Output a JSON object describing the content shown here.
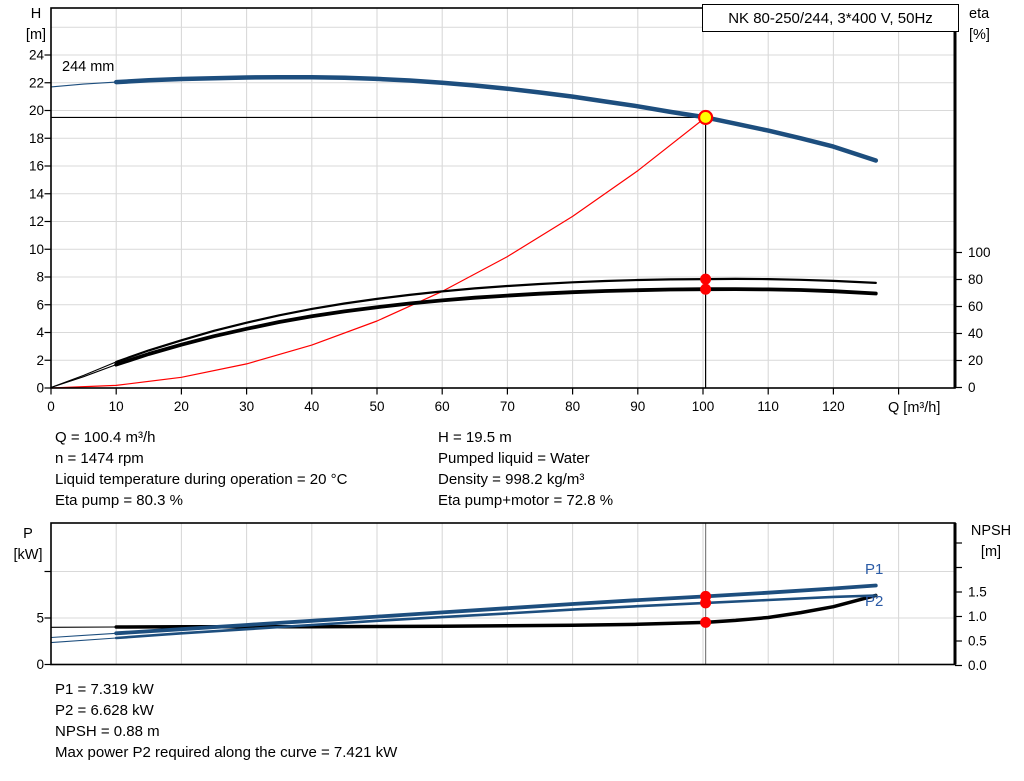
{
  "colors": {
    "curve_blue": "#1d4e7e",
    "label_blue": "#2a5aa5",
    "black": "#000000",
    "red": "#ff0000",
    "yellow": "#ffff00",
    "grid": "#d9d9d9",
    "marker_line_gray": "#808080"
  },
  "axis_labels": {
    "h_title": "H",
    "h_unit": "[m]",
    "eta_title": "eta",
    "eta_unit": "[%]",
    "q_label": "Q [m³/h]",
    "p_title": "P",
    "p_unit": "[kW]",
    "npsh_title": "NPSH",
    "npsh_unit": "[m]"
  },
  "info_block": {
    "left": [
      "Q = 100.4 m³/h",
      "n = 1474 rpm",
      "Liquid temperature during operation = 20 °C",
      "Eta pump = 80.3 %"
    ],
    "right": [
      "H = 19.5 m",
      "Pumped liquid = Water",
      "Density = 998.2 kg/m³",
      "Eta pump+motor = 72.8 %"
    ]
  },
  "results_block": [
    "P1 = 7.319 kW",
    "P2 = 6.628 kW",
    "NPSH = 0.88 m",
    "Max power P2 required along the curve = 7.421 kW"
  ],
  "chart_data": [
    {
      "id": "qh_eta_chart",
      "type": "line",
      "title": "NK 80-250/244, 3*400 V, 50Hz",
      "x_axis": {
        "label": "Q [m³/h]",
        "min": 0,
        "max": 138.7,
        "ticks": [
          [
            0,
            "0"
          ],
          [
            10,
            "10"
          ],
          [
            20,
            "20"
          ],
          [
            30,
            "30"
          ],
          [
            40,
            "40"
          ],
          [
            50,
            "50"
          ],
          [
            60,
            "60"
          ],
          [
            70,
            "70"
          ],
          [
            80,
            "80"
          ],
          [
            90,
            "90"
          ],
          [
            100,
            "100"
          ],
          [
            110,
            "110"
          ],
          [
            120,
            "120"
          ],
          [
            130,
            null
          ]
        ],
        "grid": [
          10,
          20,
          30,
          40,
          50,
          60,
          70,
          80,
          90,
          100,
          110,
          120,
          130
        ]
      },
      "y_left": {
        "label": "H [m]",
        "min": 0,
        "max": 27.4,
        "ticks": [
          [
            0,
            "0"
          ],
          [
            2,
            "2"
          ],
          [
            4,
            "4"
          ],
          [
            6,
            "6"
          ],
          [
            8,
            "8"
          ],
          [
            10,
            "10"
          ],
          [
            12,
            "12"
          ],
          [
            14,
            "14"
          ],
          [
            16,
            "16"
          ],
          [
            18,
            "18"
          ],
          [
            20,
            "20"
          ],
          [
            22,
            "22"
          ],
          [
            24,
            "24"
          ]
        ],
        "grid": [
          2,
          4,
          6,
          8,
          10,
          12,
          14,
          16,
          18,
          20,
          22,
          24,
          26
        ]
      },
      "y_right": {
        "label": "eta [%]",
        "min": 0,
        "max": 104,
        "ticks": [
          [
            0,
            "0"
          ],
          [
            20,
            "20"
          ],
          [
            40,
            "40"
          ],
          [
            60,
            "60"
          ],
          [
            80,
            "80"
          ],
          [
            100,
            "100"
          ]
        ]
      },
      "series": [
        {
          "name": "system-curve",
          "axis": "H",
          "color_key": "red",
          "width": 1.2,
          "points": [
            [
              0,
              0
            ],
            [
              10,
              0.19
            ],
            [
              20,
              0.77
            ],
            [
              30,
              1.74
            ],
            [
              40,
              3.09
            ],
            [
              50,
              4.83
            ],
            [
              60,
              6.96
            ],
            [
              70,
              9.47
            ],
            [
              80,
              12.37
            ],
            [
              90,
              15.66
            ],
            [
              100.4,
              19.5
            ]
          ]
        },
        {
          "name": "eta-pump-motor",
          "axis": "eta",
          "color_key": "black",
          "width": 3.8,
          "thin_until": 10,
          "points": [
            [
              0,
              0
            ],
            [
              5,
              8
            ],
            [
              10,
              17
            ],
            [
              15,
              24.8
            ],
            [
              20,
              31.7
            ],
            [
              25,
              38
            ],
            [
              30,
              43.5
            ],
            [
              35,
              48.5
            ],
            [
              40,
              52.8
            ],
            [
              45,
              56.4
            ],
            [
              50,
              59.5
            ],
            [
              55,
              62.2
            ],
            [
              60,
              64.5
            ],
            [
              65,
              66.5
            ],
            [
              70,
              68.1
            ],
            [
              75,
              69.5
            ],
            [
              80,
              70.6
            ],
            [
              85,
              71.5
            ],
            [
              90,
              72.1
            ],
            [
              95,
              72.6
            ],
            [
              100.4,
              72.8
            ],
            [
              105,
              72.9
            ],
            [
              110,
              72.7
            ],
            [
              115,
              72.2
            ],
            [
              120,
              71.3
            ],
            [
              126.5,
              69.6
            ]
          ]
        },
        {
          "name": "eta-pump",
          "axis": "eta",
          "color_key": "black",
          "width": 2.2,
          "thin_until": 10,
          "points": [
            [
              0,
              0
            ],
            [
              5,
              9
            ],
            [
              10,
              19
            ],
            [
              15,
              27.5
            ],
            [
              20,
              35
            ],
            [
              25,
              42
            ],
            [
              30,
              48
            ],
            [
              35,
              53.5
            ],
            [
              40,
              58.2
            ],
            [
              45,
              62.2
            ],
            [
              50,
              65.6
            ],
            [
              55,
              68.6
            ],
            [
              60,
              71.2
            ],
            [
              65,
              73.4
            ],
            [
              70,
              75.2
            ],
            [
              75,
              76.7
            ],
            [
              80,
              77.9
            ],
            [
              85,
              78.9
            ],
            [
              90,
              79.6
            ],
            [
              95,
              80.1
            ],
            [
              100.4,
              80.3
            ],
            [
              105,
              80.45
            ],
            [
              110,
              80.3
            ],
            [
              115,
              79.8
            ],
            [
              120,
              79
            ],
            [
              126.5,
              77.5
            ]
          ]
        },
        {
          "name": "head-curve",
          "label": "244 mm",
          "axis": "H",
          "color_key": "curve_blue",
          "width": 4.5,
          "thin_until": 10,
          "points": [
            [
              0,
              21.7
            ],
            [
              5,
              21.9
            ],
            [
              10,
              22.05
            ],
            [
              15,
              22.18
            ],
            [
              20,
              22.27
            ],
            [
              25,
              22.33
            ],
            [
              30,
              22.38
            ],
            [
              35,
              22.4
            ],
            [
              40,
              22.4
            ],
            [
              45,
              22.36
            ],
            [
              50,
              22.28
            ],
            [
              55,
              22.16
            ],
            [
              60,
              22
            ],
            [
              65,
              21.8
            ],
            [
              70,
              21.57
            ],
            [
              75,
              21.3
            ],
            [
              80,
              21
            ],
            [
              85,
              20.65
            ],
            [
              90,
              20.3
            ],
            [
              95,
              19.9
            ],
            [
              100.4,
              19.5
            ],
            [
              105,
              19.05
            ],
            [
              110,
              18.55
            ],
            [
              115,
              18
            ],
            [
              120,
              17.4
            ],
            [
              126.5,
              16.4
            ]
          ]
        }
      ],
      "duty_point": {
        "q": 100.4,
        "h": 19.5
      },
      "dots": [
        {
          "name": "eta-pump-dot",
          "q": 100.4,
          "axis": "eta",
          "v": 80.3
        },
        {
          "name": "eta-pump-motor-dot",
          "q": 100.4,
          "axis": "eta",
          "v": 72.8
        }
      ]
    },
    {
      "id": "power_npsh_chart",
      "type": "line",
      "x_axis": {
        "label": "Q [m³/h]",
        "min": 0,
        "max": 138.7,
        "grid": [
          10,
          20,
          30,
          40,
          50,
          60,
          70,
          80,
          90,
          100,
          110,
          120,
          130
        ]
      },
      "y_left": {
        "label": "P [kW]",
        "min": 0,
        "max": 15.2,
        "ticks": [
          [
            0,
            "0"
          ],
          [
            5,
            "5"
          ],
          [
            10,
            null
          ]
        ],
        "grid": [
          5,
          10
        ]
      },
      "y_right": {
        "label": "NPSH [m]",
        "min": 0,
        "max": 2.9,
        "ticks": [
          [
            0,
            "0.0"
          ],
          [
            0.5,
            "0.5"
          ],
          [
            1,
            "1.0"
          ],
          [
            1.5,
            "1.5"
          ],
          [
            2,
            null
          ],
          [
            2.5,
            null
          ]
        ]
      },
      "series": [
        {
          "name": "NPSH",
          "axis": "NPSH",
          "color_key": "black",
          "width": 3.5,
          "thin_until": 10,
          "points": [
            [
              0,
              0.78
            ],
            [
              10,
              0.785
            ],
            [
              20,
              0.79
            ],
            [
              30,
              0.79
            ],
            [
              40,
              0.79
            ],
            [
              50,
              0.795
            ],
            [
              60,
              0.8
            ],
            [
              70,
              0.81
            ],
            [
              80,
              0.82
            ],
            [
              90,
              0.84
            ],
            [
              100.4,
              0.88
            ],
            [
              105,
              0.92
            ],
            [
              110,
              0.98
            ],
            [
              115,
              1.08
            ],
            [
              120,
              1.2
            ],
            [
              126.5,
              1.43
            ]
          ]
        },
        {
          "name": "P2",
          "axis": "P",
          "color_key": "curve_blue",
          "width": 2.6,
          "thin_until": 10,
          "points": [
            [
              0,
              2.35
            ],
            [
              10,
              2.85
            ],
            [
              20,
              3.35
            ],
            [
              30,
              3.8
            ],
            [
              40,
              4.25
            ],
            [
              50,
              4.7
            ],
            [
              60,
              5.1
            ],
            [
              70,
              5.5
            ],
            [
              80,
              5.9
            ],
            [
              90,
              6.27
            ],
            [
              100.4,
              6.628
            ],
            [
              110,
              6.94
            ],
            [
              120,
              7.27
            ],
            [
              126.5,
              7.421
            ]
          ]
        },
        {
          "name": "P1",
          "axis": "P",
          "color_key": "curve_blue",
          "width": 3.8,
          "thin_until": 10,
          "points": [
            [
              0,
              2.9
            ],
            [
              10,
              3.35
            ],
            [
              20,
              3.8
            ],
            [
              30,
              4.25
            ],
            [
              40,
              4.7
            ],
            [
              50,
              5.15
            ],
            [
              60,
              5.6
            ],
            [
              70,
              6.05
            ],
            [
              80,
              6.5
            ],
            [
              90,
              6.92
            ],
            [
              100.4,
              7.319
            ],
            [
              110,
              7.72
            ],
            [
              120,
              8.17
            ],
            [
              126.5,
              8.5
            ]
          ]
        }
      ],
      "marker_line_q": 100.4,
      "dots": [
        {
          "name": "p1-dot",
          "q": 100.4,
          "axis": "P",
          "v": 7.319
        },
        {
          "name": "p2-dot",
          "q": 100.4,
          "axis": "P",
          "v": 6.628
        },
        {
          "name": "npsh-dot",
          "q": 100.4,
          "axis": "NPSH",
          "v": 0.88
        }
      ]
    }
  ]
}
